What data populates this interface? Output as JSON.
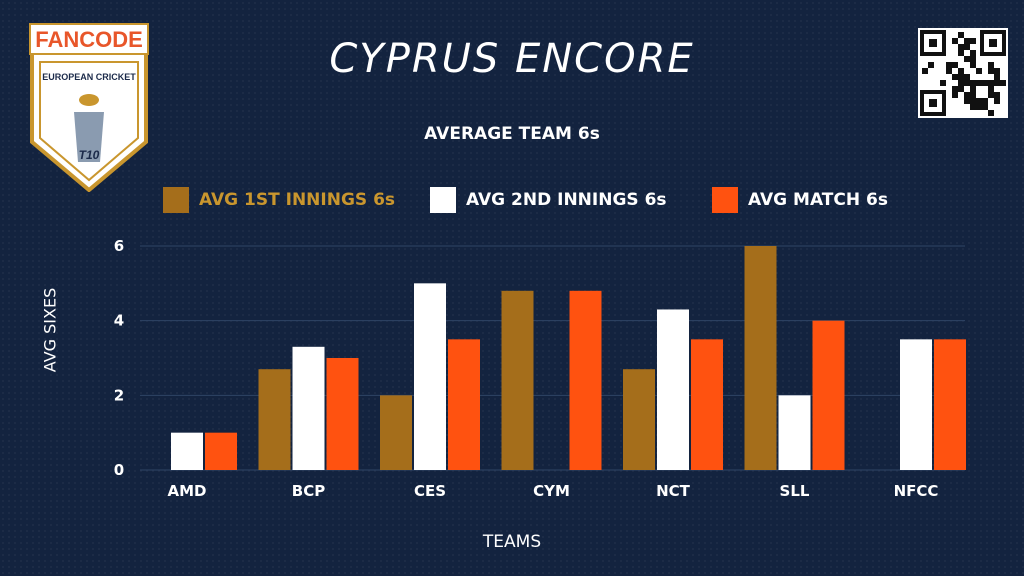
{
  "header": {
    "title": "CYPRUS ENCORE",
    "logo_brand_text": "FANCODE",
    "logo_sub_text": "EUROPEAN CRICKET",
    "logo_badge_text": "T10"
  },
  "colors": {
    "background": "#13233f",
    "series_1": "#a56e1b",
    "series_2": "#ffffff",
    "series_3": "#ff5210",
    "gridline": "#2f4466"
  },
  "icons": {
    "qr": "qr-code-icon",
    "logo": "fancode-european-cricket-logo"
  },
  "chart_data": {
    "type": "bar",
    "title": "AVERAGE TEAM 6s",
    "xlabel": "TEAMS",
    "ylabel": "AVG SIXES",
    "categories": [
      "AMD",
      "BCP",
      "CES",
      "CYM",
      "NCT",
      "SLL",
      "NFCC"
    ],
    "ylim": [
      0,
      6
    ],
    "yticks": [
      0,
      2,
      4,
      6
    ],
    "grid": true,
    "legend_position": "top",
    "series": [
      {
        "name": "AVG 1ST INNINGS 6s",
        "values": [
          0,
          2.7,
          2,
          4.8,
          2.7,
          6,
          0
        ]
      },
      {
        "name": "AVG 2ND INNINGS 6s",
        "values": [
          1,
          3.3,
          5,
          0,
          4.3,
          2,
          3.5
        ]
      },
      {
        "name": "AVG MATCH 6s",
        "values": [
          1,
          3,
          3.5,
          4.8,
          3.5,
          4,
          3.5
        ]
      }
    ]
  }
}
